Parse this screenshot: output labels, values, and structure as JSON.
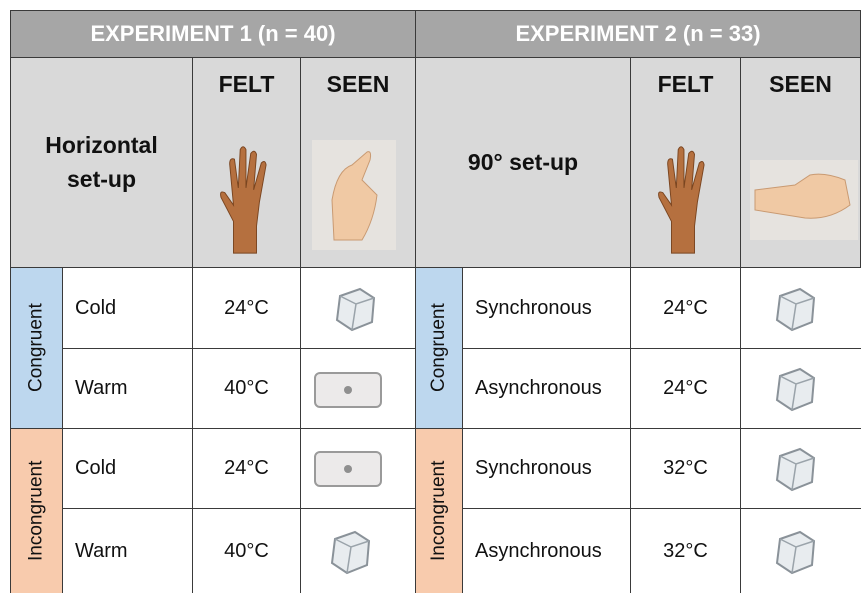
{
  "experiments": [
    {
      "title": "EXPERIMENT 1 (n = 40)",
      "setup": "Horizontal set-up",
      "felt_header": "FELT",
      "seen_header": "SEEN",
      "groups": [
        {
          "label": "Congruent",
          "rows": [
            {
              "condition": "Cold",
              "felt": "24°C"
            },
            {
              "condition": "Warm",
              "felt": "40°C"
            }
          ]
        },
        {
          "label": "Incongruent",
          "rows": [
            {
              "condition": "Cold",
              "felt": "24°C"
            },
            {
              "condition": "Warm",
              "felt": "40°C"
            }
          ]
        }
      ]
    },
    {
      "title": "EXPERIMENT 2 (n = 33)",
      "setup": "90° set-up",
      "felt_header": "FELT",
      "seen_header": "SEEN",
      "groups": [
        {
          "label": "Congruent",
          "rows": [
            {
              "condition": "Synchronous",
              "felt": "24°C"
            },
            {
              "condition": "Asynchronous",
              "felt": "24°C"
            }
          ]
        },
        {
          "label": "Incongruent",
          "rows": [
            {
              "condition": "Synchronous",
              "felt": "32°C"
            },
            {
              "condition": "Asynchronous",
              "felt": "32°C"
            }
          ]
        }
      ]
    }
  ]
}
